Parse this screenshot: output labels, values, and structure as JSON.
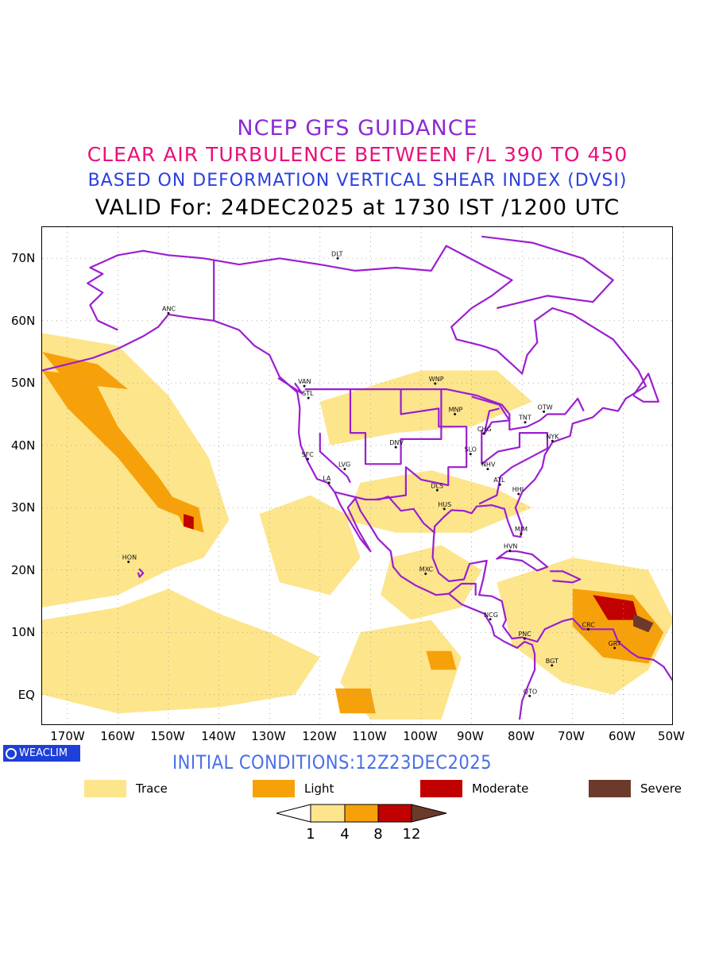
{
  "titles": {
    "line1": "NCEP GFS GUIDANCE",
    "line2": "CLEAR AIR TURBULENCE BETWEEN F/L 390 TO 450",
    "line3": "BASED ON DEFORMATION VERTICAL SHEAR INDEX (DVSI)",
    "line4": "VALID For: 24DEC2025 at 1730 IST /1200 UTC"
  },
  "colors": {
    "trace": "#fde58c",
    "light": "#f7a10a",
    "moderate": "#c10000",
    "severe": "#6b3a2a",
    "coastline": "#9b1fd0"
  },
  "axes": {
    "lat_labels": [
      "70N",
      "60N",
      "50N",
      "40N",
      "30N",
      "20N",
      "10N",
      "EQ"
    ],
    "lon_labels": [
      "170W",
      "160W",
      "150W",
      "140W",
      "130W",
      "120W",
      "110W",
      "100W",
      "90W",
      "80W",
      "70W",
      "60W",
      "50W"
    ]
  },
  "cities": [
    {
      "code": "DLT",
      "lon": -116.5,
      "lat": 70.0
    },
    {
      "code": "ANC",
      "lon": -150.0,
      "lat": 61.2
    },
    {
      "code": "VAN",
      "lon": -123.1,
      "lat": 49.5
    },
    {
      "code": "STL",
      "lon": -122.3,
      "lat": 47.6
    },
    {
      "code": "WNP",
      "lon": -97.2,
      "lat": 49.9
    },
    {
      "code": "MNP",
      "lon": -93.3,
      "lat": 45.0
    },
    {
      "code": "OTW",
      "lon": -75.7,
      "lat": 45.4
    },
    {
      "code": "TNT",
      "lon": -79.4,
      "lat": 43.7
    },
    {
      "code": "CHG",
      "lon": -87.6,
      "lat": 41.9
    },
    {
      "code": "NYK",
      "lon": -74.0,
      "lat": 40.7
    },
    {
      "code": "SFC",
      "lon": -122.4,
      "lat": 37.8
    },
    {
      "code": "LVG",
      "lon": -115.1,
      "lat": 36.2
    },
    {
      "code": "DNV",
      "lon": -105.0,
      "lat": 39.7
    },
    {
      "code": "SLO",
      "lon": -90.2,
      "lat": 38.6
    },
    {
      "code": "NHV",
      "lon": -86.8,
      "lat": 36.2
    },
    {
      "code": "LA",
      "lon": -118.2,
      "lat": 34.0
    },
    {
      "code": "DLS",
      "lon": -96.8,
      "lat": 32.8
    },
    {
      "code": "ATL",
      "lon": -84.4,
      "lat": 33.7
    },
    {
      "code": "HHI",
      "lon": -80.7,
      "lat": 32.2
    },
    {
      "code": "HUS",
      "lon": -95.4,
      "lat": 29.8
    },
    {
      "code": "MIM",
      "lon": -80.2,
      "lat": 25.8
    },
    {
      "code": "HVN",
      "lon": -82.4,
      "lat": 23.1
    },
    {
      "code": "HON",
      "lon": -157.9,
      "lat": 21.3
    },
    {
      "code": "MXC",
      "lon": -99.1,
      "lat": 19.4
    },
    {
      "code": "NCG",
      "lon": -86.3,
      "lat": 12.1
    },
    {
      "code": "CRC",
      "lon": -66.9,
      "lat": 10.5
    },
    {
      "code": "PNC",
      "lon": -79.5,
      "lat": 9.0
    },
    {
      "code": "GRT",
      "lon": -61.7,
      "lat": 7.5
    },
    {
      "code": "BGT",
      "lon": -74.1,
      "lat": 4.7
    },
    {
      "code": "QTO",
      "lon": -78.5,
      "lat": -0.2
    }
  ],
  "badge": "WEACLIM",
  "initial_conditions": "INITIAL CONDITIONS:12Z23DEC2025",
  "legend": [
    {
      "label": "Trace",
      "color": "#fde58c"
    },
    {
      "label": "Light",
      "color": "#f7a10a"
    },
    {
      "label": "Moderate",
      "color": "#c10000"
    },
    {
      "label": "Severe",
      "color": "#6b3a2a"
    }
  ],
  "colorbar": {
    "levels": [
      "1",
      "4",
      "8",
      "12"
    ]
  }
}
